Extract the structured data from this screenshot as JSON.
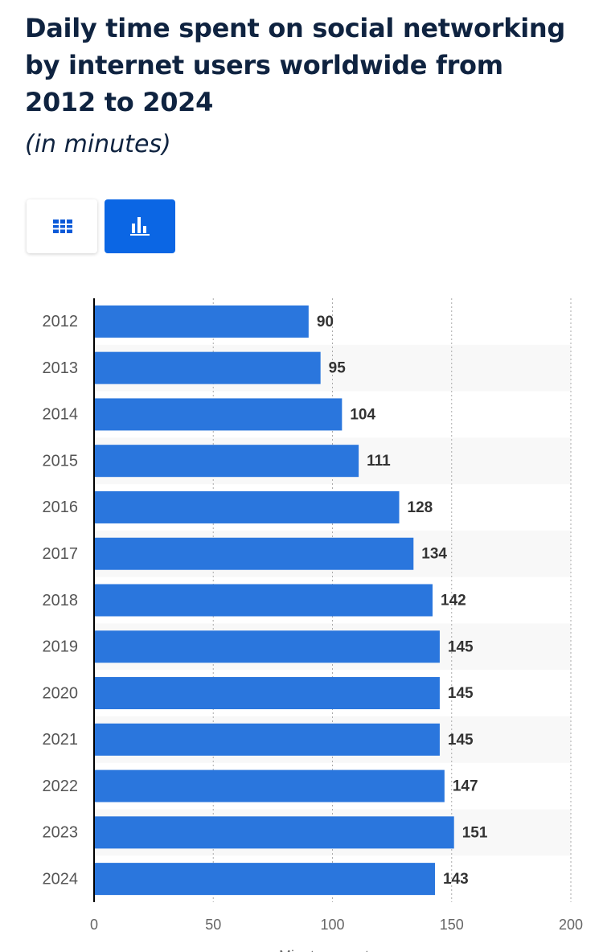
{
  "chart_data": {
    "type": "hbar",
    "title": "Daily time spent on social networking by internet users worldwide from 2012 to 2024",
    "subtitle": "(in minutes)",
    "categories": [
      "2012",
      "2013",
      "2014",
      "2015",
      "2016",
      "2017",
      "2018",
      "2019",
      "2020",
      "2021",
      "2022",
      "2023",
      "2024"
    ],
    "values": [
      90,
      95,
      104,
      111,
      128,
      134,
      142,
      145,
      145,
      145,
      147,
      151,
      143
    ],
    "color": "#2a76dd",
    "xlim": [
      0,
      200
    ],
    "xticks": [
      0,
      50,
      100,
      150,
      200
    ],
    "x_label": "Minutes spent",
    "grid": true
  }
}
